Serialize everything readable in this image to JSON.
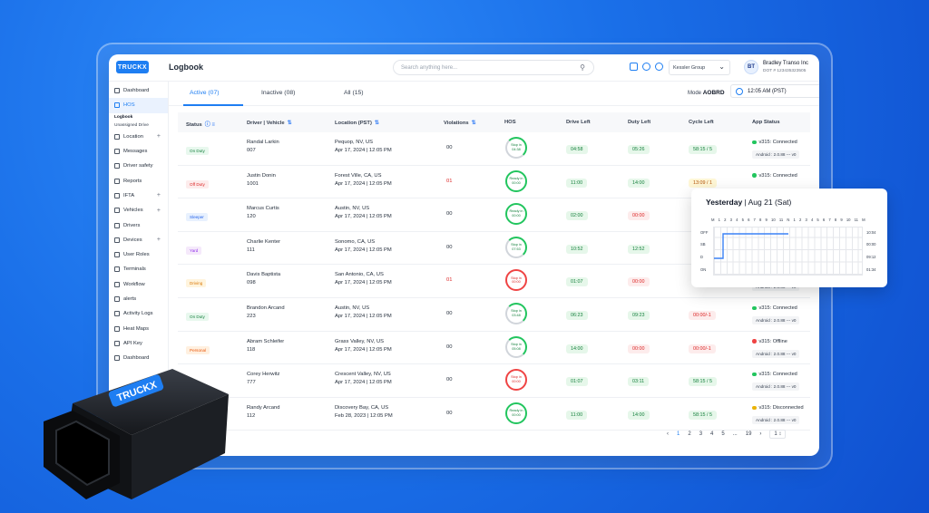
{
  "app": {
    "logo": "TRUCKX",
    "page_title": "Logbook"
  },
  "header": {
    "search_placeholder": "Search anything here...",
    "company": "Kessler Group",
    "user_initials": "BT",
    "user_name": "Bradley Transo Inc",
    "user_dot": "DOT # 123435323505"
  },
  "sidebar": {
    "items": [
      {
        "label": "Dashboard",
        "icon": "grid-icon"
      },
      {
        "label": "HOS",
        "icon": "hos-icon",
        "active": true
      },
      {
        "label": "Location",
        "icon": "location-icon",
        "plus": true
      },
      {
        "label": "Messages",
        "icon": "message-icon"
      },
      {
        "label": "Driver safety",
        "icon": "safety-icon"
      },
      {
        "label": "Reports",
        "icon": "report-icon"
      },
      {
        "label": "IFTA",
        "icon": "ifta-icon",
        "plus": true
      },
      {
        "label": "Vehicles",
        "icon": "truck-icon",
        "plus": true
      },
      {
        "label": "Drivers",
        "icon": "driver-icon"
      },
      {
        "label": "Devices",
        "icon": "device-icon",
        "plus": true
      },
      {
        "label": "User Roles",
        "icon": "roles-icon"
      },
      {
        "label": "Terminals",
        "icon": "terminal-icon"
      },
      {
        "label": "Workflow",
        "icon": "workflow-icon"
      },
      {
        "label": "alerts",
        "icon": "alert-icon"
      },
      {
        "label": "Activity Logs",
        "icon": "activity-icon"
      },
      {
        "label": "Heat Maps",
        "icon": "heatmap-icon"
      },
      {
        "label": "API Key",
        "icon": "key-icon"
      },
      {
        "label": "Dashboard",
        "icon": "grid-icon"
      }
    ],
    "hos_sub": [
      "Logbook",
      "Unassigned Drive"
    ]
  },
  "tabs": [
    "Active (07)",
    "Inactive (08)",
    "All (15)"
  ],
  "mode_label": "Mode",
  "mode_value": "AOBRD",
  "time": "12:05 AM (PST)",
  "columns": [
    "Status",
    "Driver | Vehicle",
    "Location (PST)",
    "Violations",
    "HOS",
    "Drive Left",
    "Duty Left",
    "Cycle Left",
    "App Status"
  ],
  "rows": [
    {
      "status": "On Duty",
      "sc": "b-on",
      "driver": "Randal Larkin",
      "vehicle": "007",
      "loc": "Pequop, NV, US",
      "date": "Apr 17, 2024 | 12:05 PM",
      "viol": "00",
      "vc": "",
      "hos1": "Stop in",
      "hos2": "04:38",
      "ring": "gp",
      "drive": "04:58",
      "dc": "p-g",
      "duty": "05:26",
      "uc": "p-g",
      "cycle": "58:15 / 5",
      "cc": "p-g",
      "app": "v315: Connected",
      "dot": "#22c55e",
      "android": "Android : 2.0.88 --- v0"
    },
    {
      "status": "Off Duty",
      "sc": "b-off",
      "driver": "Justin Donin",
      "vehicle": "1001",
      "loc": "Forest Ville, CA, US",
      "date": "Apr 17, 2024 | 12:05 PM",
      "viol": "01",
      "vc": "#dc2626",
      "hos1": "Ready in",
      "hos2": "00:00",
      "ring": "g",
      "drive": "11:00",
      "dc": "p-g",
      "duty": "14:00",
      "uc": "p-g",
      "cycle": "13:09 / 1",
      "cc": "p-y",
      "app": "v315: Connected",
      "dot": "#22c55e",
      "android": ""
    },
    {
      "status": "Sleeper",
      "sc": "b-sl",
      "driver": "Marcus Curtis",
      "vehicle": "120",
      "loc": "Austin, NV, US",
      "date": "Apr 17, 2024 | 12:05 PM",
      "viol": "00",
      "vc": "",
      "hos1": "Ready in",
      "hos2": "00:00",
      "ring": "g",
      "drive": "02:00",
      "dc": "p-g",
      "duty": "00:00",
      "uc": "p-r",
      "cycle": "",
      "cc": "",
      "app": "",
      "dot": "",
      "android": ""
    },
    {
      "status": "Yard",
      "sc": "b-yd",
      "driver": "Charlie Kenter",
      "vehicle": "111",
      "loc": "Sonomo, CA, US",
      "date": "Apr 17, 2024 | 12:05 PM",
      "viol": "00",
      "vc": "",
      "hos1": "Stop in",
      "hos2": "07:53",
      "ring": "gp",
      "drive": "10:52",
      "dc": "p-g",
      "duty": "12:52",
      "uc": "p-g",
      "cycle": "",
      "cc": "",
      "app": "",
      "dot": "",
      "android": ""
    },
    {
      "status": "Driving",
      "sc": "b-dr",
      "driver": "Davis Baptista",
      "vehicle": "098",
      "loc": "San Antonio, CA, US",
      "date": "Apr 17, 2024 | 12:05 PM",
      "viol": "01",
      "vc": "#dc2626",
      "hos1": "Stop in",
      "hos2": "00:00",
      "ring": "r",
      "drive": "01:07",
      "dc": "p-g",
      "duty": "00:00",
      "uc": "p-r",
      "cycle": "",
      "cc": "",
      "app": "",
      "dot": "",
      "android": "Android : 2.0.88 --- v0"
    },
    {
      "status": "On Duty",
      "sc": "b-on",
      "driver": "Brandon Arcand",
      "vehicle": "223",
      "loc": "Austin, NV, US",
      "date": "Apr 17, 2024 | 12:05 PM",
      "viol": "00",
      "vc": "",
      "hos1": "Stop in",
      "hos2": "03:48",
      "ring": "gp",
      "drive": "06:23",
      "dc": "p-g",
      "duty": "09:23",
      "uc": "p-g",
      "cycle": "00:00/-1",
      "cc": "p-r",
      "app": "v315: Connected",
      "dot": "#22c55e",
      "android": "Android : 2.0.88 --- v0"
    },
    {
      "status": "Personal",
      "sc": "b-pc",
      "driver": "Abram Schleifer",
      "vehicle": "118",
      "loc": "Grass Valley, NV, US",
      "date": "Apr 17, 2024 | 12:05 PM",
      "viol": "00",
      "vc": "",
      "hos1": "Stop in",
      "hos2": "05:08",
      "ring": "gp",
      "drive": "14:00",
      "dc": "p-g",
      "duty": "00:00",
      "uc": "p-r",
      "cycle": "00:00/-1",
      "cc": "p-r",
      "app": "v315: Offline",
      "dot": "#ef4444",
      "android": "Android : 2.0.88 --- v0"
    },
    {
      "status": "",
      "sc": "",
      "driver": "Corey Herwitz",
      "vehicle": "777",
      "loc": "Crescent Valley, NV, US",
      "date": "Apr 17, 2024 | 12:05 PM",
      "viol": "00",
      "vc": "",
      "hos1": "Stop in",
      "hos2": "00:00",
      "ring": "r",
      "drive": "01:07",
      "dc": "p-g",
      "duty": "03:11",
      "uc": "p-g",
      "cycle": "58:15 / 5",
      "cc": "p-g",
      "app": "v315: Connected",
      "dot": "#22c55e",
      "android": "Android : 2.0.88 --- v0"
    },
    {
      "status": "",
      "sc": "",
      "driver": "Randy Arcand",
      "vehicle": "112",
      "loc": "Discovery Bay, CA, US",
      "date": "Feb 28, 2023 | 12:05 PM",
      "viol": "00",
      "vc": "",
      "hos1": "Ready in",
      "hos2": "00:00",
      "ring": "g",
      "drive": "11:00",
      "dc": "p-g",
      "duty": "14:00",
      "uc": "p-g",
      "cycle": "58:15 / 5",
      "cc": "p-g",
      "app": "v315: Disconnected",
      "dot": "#eab308",
      "android": "Android : 2.0.88 --- v0"
    }
  ],
  "pagination": [
    "1",
    "2",
    "3",
    "4",
    "5",
    "...",
    "19"
  ],
  "page_size": "1",
  "popup": {
    "title": "Yesterday",
    "date": "Aug 21 (Sat)",
    "hours": [
      "M",
      "1",
      "2",
      "3",
      "4",
      "5",
      "6",
      "7",
      "8",
      "9",
      "10",
      "11",
      "N",
      "1",
      "2",
      "3",
      "4",
      "5",
      "6",
      "7",
      "8",
      "9",
      "10",
      "11",
      "M"
    ],
    "rows": [
      "OFF",
      "SB",
      "D",
      "ON"
    ],
    "totals": [
      "10:04",
      "00:00",
      "09:12",
      "01:34"
    ]
  },
  "device_label": "TRUCKX",
  "colors": {
    "accent": "#1e7ef2",
    "background": "#1a6fe8"
  }
}
